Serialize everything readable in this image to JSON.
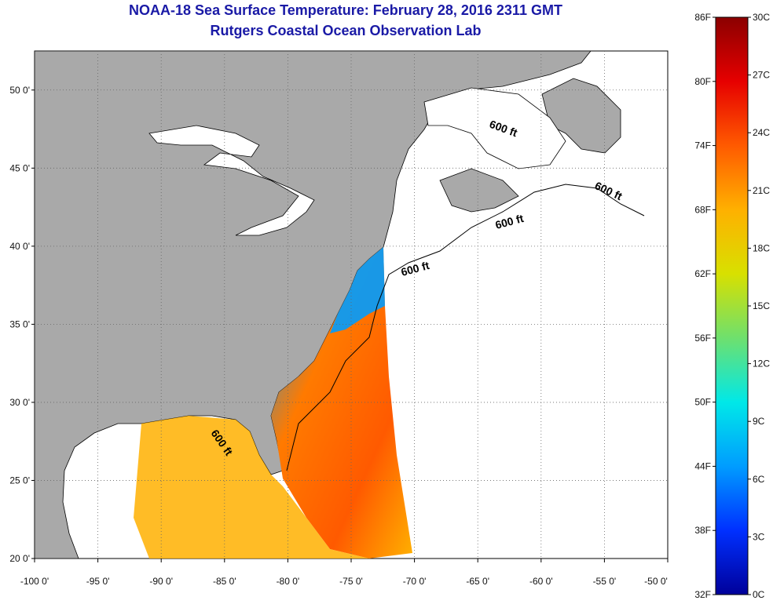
{
  "title_line1": "NOAA-18 Sea Surface Temperature:  February 28, 2016 2311 GMT",
  "title_line2": "Rutgers Coastal Ocean Observation Lab",
  "map": {
    "lon_range": [
      -100,
      -50
    ],
    "lat_range": [
      20,
      52.5
    ],
    "lon_ticks": [
      "-100 0'",
      "-95 0'",
      "-90 0'",
      "-85 0'",
      "-80 0'",
      "-75 0'",
      "-70 0'",
      "-65 0'",
      "-60 0'",
      "-55 0'",
      "-50 0'"
    ],
    "lat_ticks": [
      "20 0'",
      "25 0'",
      "30 0'",
      "35 0'",
      "40 0'",
      "45 0'",
      "50 0'"
    ],
    "contour_label": "600 ft",
    "land_color": "#a9a9a9",
    "nodata_color": "#ffffff"
  },
  "colorbar": {
    "f_labels": [
      "86F",
      "80F",
      "74F",
      "68F",
      "62F",
      "56F",
      "50F",
      "44F",
      "38F",
      "32F"
    ],
    "c_labels": [
      "30C",
      "27C",
      "24C",
      "21C",
      "18C",
      "15C",
      "12C",
      "9C",
      "6C",
      "3C",
      "0C"
    ],
    "colors": [
      "#8b0000",
      "#e60000",
      "#ff5a00",
      "#ffb000",
      "#d8e000",
      "#6ee06e",
      "#00e8e8",
      "#009cff",
      "#0030ff",
      "#00009a"
    ]
  }
}
